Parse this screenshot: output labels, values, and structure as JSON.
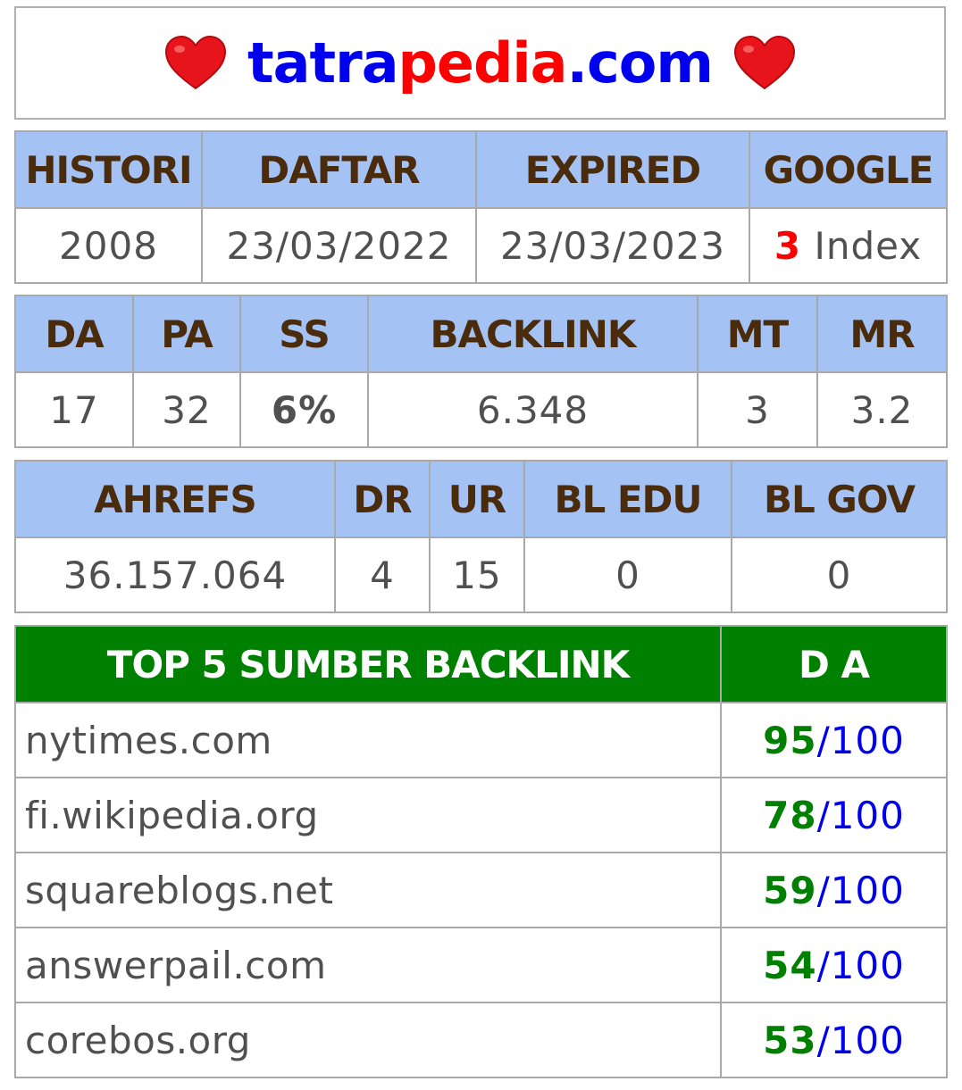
{
  "header": {
    "domain_part1": "tatra",
    "domain_part2": "pedia",
    "domain_part3": ".com",
    "left_icon": "heart-icon",
    "right_icon": "heart-icon"
  },
  "colors": {
    "header_bg": "#a4c2f4",
    "header_text": "#4a2b0b",
    "top_header_bg": "#008000",
    "accent_green": "#008000",
    "accent_red": "#ff0000",
    "accent_blue": "#0000ee"
  },
  "table1": {
    "headers": [
      "HISTORI",
      "DAFTAR",
      "EXPIRED",
      "GOOGLE"
    ],
    "values": {
      "histori": "2008",
      "daftar": "23/03/2022",
      "expired": "23/03/2023",
      "google_count": "3",
      "google_label": "Index"
    }
  },
  "table2": {
    "headers": [
      "DA",
      "PA",
      "SS",
      "BACKLINK",
      "MT",
      "MR"
    ],
    "values": [
      "17",
      "32",
      "6%",
      "6.348",
      "3",
      "3.2"
    ]
  },
  "table3": {
    "headers": [
      "AHREFS",
      "DR",
      "UR",
      "BL EDU",
      "BL GOV"
    ],
    "values": [
      "36.157.064",
      "4",
      "15",
      "0",
      "0"
    ]
  },
  "top_backlinks": {
    "header_source": "TOP 5 SUMBER BACKLINK",
    "header_da": "D A",
    "rows": [
      {
        "site": "nytimes.com",
        "da": "95",
        "max": "/100"
      },
      {
        "site": "fi.wikipedia.org",
        "da": "78",
        "max": "/100"
      },
      {
        "site": "squareblogs.net",
        "da": "59",
        "max": "/100"
      },
      {
        "site": "answerpail.com",
        "da": "54",
        "max": "/100"
      },
      {
        "site": "corebos.org",
        "da": "53",
        "max": "/100"
      }
    ]
  }
}
